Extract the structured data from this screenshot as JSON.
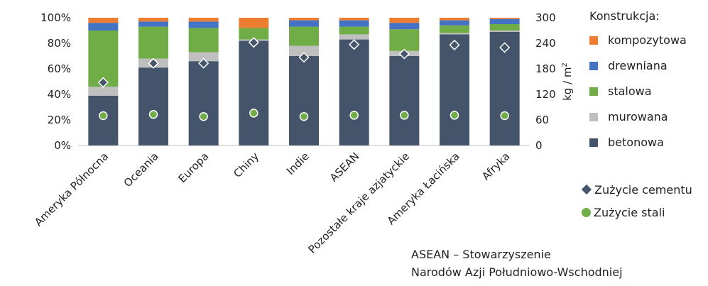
{
  "chart_data": {
    "type": "bar",
    "stacked": true,
    "categories": [
      "Ameryka Północna",
      "Oceania",
      "Europa",
      "Chiny",
      "Indie",
      "ASEAN",
      "Pozostałe kraje azjatyckie",
      "Ameryka Łacińska",
      "Afryka"
    ],
    "y_left": {
      "ticks": [
        "0%",
        "20%",
        "40%",
        "60%",
        "80%",
        "100%"
      ],
      "range": [
        0,
        100
      ]
    },
    "y_right": {
      "label": "kg / m",
      "label_superscript": "2",
      "ticks": [
        "0",
        "60",
        "120",
        "180",
        "240",
        "300"
      ],
      "range": [
        0,
        300
      ]
    },
    "legend_title": "Konstrukcja:",
    "series": [
      {
        "name": "betonowa",
        "color": "#44546a",
        "values": [
          39,
          61,
          66,
          82,
          70,
          83,
          70,
          87,
          89
        ]
      },
      {
        "name": "murowana",
        "color": "#bfbfbf",
        "values": [
          7,
          7,
          7,
          1,
          8,
          4,
          4,
          1,
          1
        ]
      },
      {
        "name": "stalowa",
        "color": "#70ad47",
        "values": [
          44,
          25,
          19,
          9,
          15,
          6,
          17,
          6,
          5
        ]
      },
      {
        "name": "drewniana",
        "color": "#4472c4",
        "values": [
          6,
          4,
          5,
          0,
          5,
          5,
          5,
          4,
          4
        ]
      },
      {
        "name": "kompozytowa",
        "color": "#ed7d31",
        "values": [
          4,
          3,
          3,
          8,
          2,
          2,
          4,
          2,
          1
        ]
      }
    ],
    "markers": [
      {
        "name": "Zużycie cementu",
        "shape": "diamond",
        "color": "#44546a",
        "axis": "right",
        "values": [
          148,
          193,
          193,
          242,
          207,
          237,
          215,
          236,
          230
        ]
      },
      {
        "name": "Zużycie stali",
        "shape": "circle",
        "color": "#70ad47",
        "axis": "right",
        "values": [
          70,
          73,
          68,
          76,
          68,
          71,
          71,
          71,
          70
        ]
      }
    ]
  },
  "note": {
    "line1": "ASEAN – Stowarzyszenie",
    "line2": "Narodów Azji Południowo-Wschodniej"
  }
}
